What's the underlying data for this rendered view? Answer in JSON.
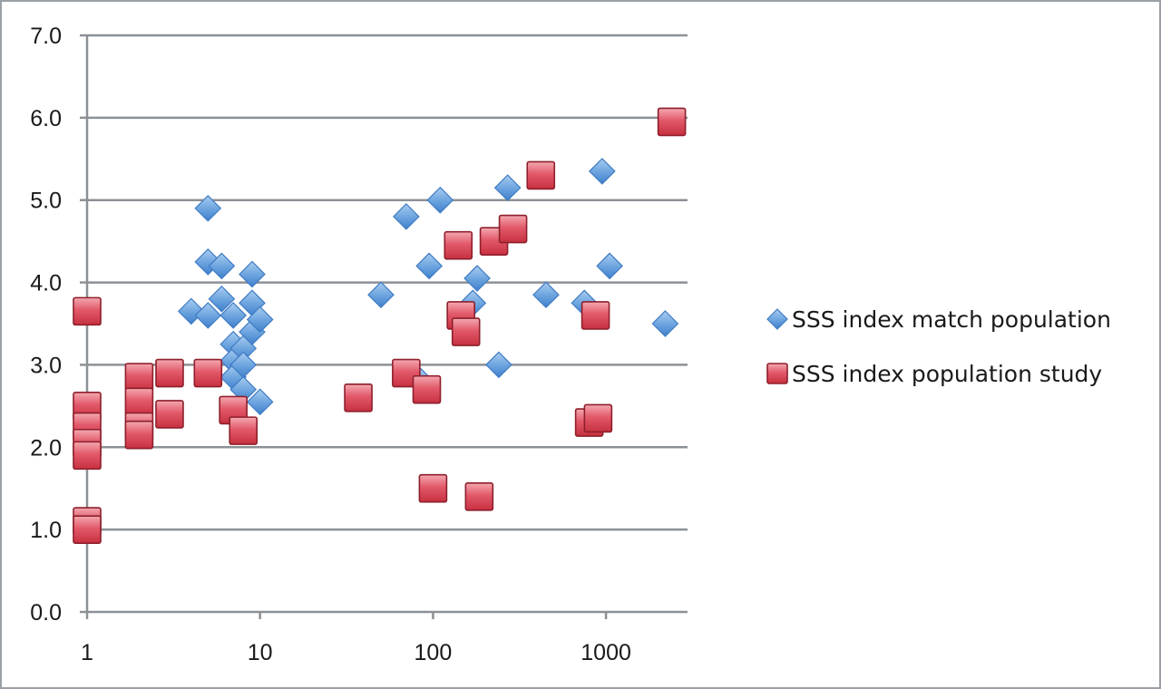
{
  "chart_data": {
    "type": "scatter",
    "x_scale": "log",
    "xlim": [
      1,
      3000
    ],
    "ylim": [
      0,
      7
    ],
    "x_ticks": [
      1,
      10,
      100,
      1000
    ],
    "x_tick_labels": [
      "1",
      "10",
      "100",
      "1000"
    ],
    "y_ticks": [
      0,
      1,
      2,
      3,
      4,
      5,
      6,
      7
    ],
    "y_tick_labels": [
      "0.0",
      "1.0",
      "2.0",
      "3.0",
      "4.0",
      "5.0",
      "6.0",
      "7.0"
    ],
    "grid": "horizontal",
    "legend_position": "right",
    "series": [
      {
        "name": "SSS index match population",
        "marker": "diamond",
        "color": "#5b9bd5",
        "points": [
          [
            4,
            3.65
          ],
          [
            5,
            4.9
          ],
          [
            5,
            4.25
          ],
          [
            5,
            3.6
          ],
          [
            6,
            4.2
          ],
          [
            6,
            3.8
          ],
          [
            7,
            3.6
          ],
          [
            7,
            3.25
          ],
          [
            7,
            3.05
          ],
          [
            7,
            2.85
          ],
          [
            8,
            3.2
          ],
          [
            8,
            3.0
          ],
          [
            8,
            2.7
          ],
          [
            9,
            4.1
          ],
          [
            9,
            3.75
          ],
          [
            9,
            3.4
          ],
          [
            10,
            3.55
          ],
          [
            10,
            2.55
          ],
          [
            50,
            3.85
          ],
          [
            70,
            4.8
          ],
          [
            85,
            2.8
          ],
          [
            95,
            4.2
          ],
          [
            110,
            5.0
          ],
          [
            170,
            3.75
          ],
          [
            180,
            4.05
          ],
          [
            240,
            3.0
          ],
          [
            270,
            5.15
          ],
          [
            450,
            3.85
          ],
          [
            750,
            3.75
          ],
          [
            950,
            5.35
          ],
          [
            1050,
            4.2
          ],
          [
            2200,
            3.5
          ]
        ]
      },
      {
        "name": "SSS index population study",
        "marker": "square",
        "color": "#e05061",
        "points": [
          [
            1,
            3.65
          ],
          [
            1,
            2.5
          ],
          [
            1,
            2.25
          ],
          [
            1,
            2.05
          ],
          [
            1,
            1.9
          ],
          [
            1,
            1.1
          ],
          [
            1,
            1.0
          ],
          [
            2,
            2.85
          ],
          [
            2,
            2.55
          ],
          [
            2,
            2.25
          ],
          [
            2,
            2.15
          ],
          [
            3,
            2.9
          ],
          [
            3,
            2.4
          ],
          [
            5,
            2.9
          ],
          [
            7,
            2.45
          ],
          [
            8,
            2.2
          ],
          [
            37,
            2.6
          ],
          [
            70,
            2.9
          ],
          [
            92,
            2.7
          ],
          [
            100,
            1.5
          ],
          [
            140,
            4.45
          ],
          [
            145,
            3.6
          ],
          [
            155,
            3.4
          ],
          [
            185,
            1.4
          ],
          [
            225,
            4.5
          ],
          [
            290,
            4.65
          ],
          [
            420,
            5.3
          ],
          [
            800,
            2.3
          ],
          [
            870,
            3.6
          ],
          [
            900,
            2.35
          ],
          [
            2400,
            5.95
          ]
        ]
      }
    ]
  }
}
